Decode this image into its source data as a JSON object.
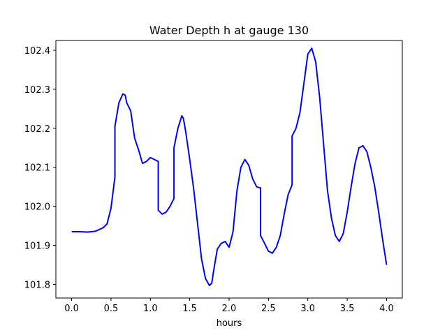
{
  "chart_data": {
    "type": "line",
    "title": "Water Depth h at gauge 130",
    "xlabel": "hours",
    "ylabel": "",
    "xlim": [
      -0.2,
      4.2
    ],
    "ylim": [
      101.765,
      102.425
    ],
    "xticks": [
      0.0,
      0.5,
      1.0,
      1.5,
      2.0,
      2.5,
      3.0,
      3.5,
      4.0
    ],
    "xtick_labels": [
      "0.0",
      "0.5",
      "1.0",
      "1.5",
      "2.0",
      "2.5",
      "3.0",
      "3.5",
      "4.0"
    ],
    "yticks": [
      101.8,
      101.9,
      102.0,
      102.1,
      102.2,
      102.3,
      102.4
    ],
    "ytick_labels": [
      "101.8",
      "101.9",
      "102.0",
      "102.1",
      "102.2",
      "102.3",
      "102.4"
    ],
    "grid": false,
    "series": [
      {
        "color": "#0000ff",
        "x": [
          0.0,
          0.1,
          0.2,
          0.3,
          0.4,
          0.45,
          0.5,
          0.55,
          0.55,
          0.6,
          0.65,
          0.68,
          0.7,
          0.75,
          0.8,
          0.85,
          0.9,
          0.95,
          1.0,
          1.05,
          1.1,
          1.1,
          1.15,
          1.2,
          1.25,
          1.3,
          1.3,
          1.35,
          1.4,
          1.42,
          1.45,
          1.5,
          1.55,
          1.6,
          1.65,
          1.7,
          1.75,
          1.78,
          1.8,
          1.85,
          1.9,
          1.95,
          2.0,
          2.05,
          2.1,
          2.15,
          2.2,
          2.25,
          2.3,
          2.35,
          2.4,
          2.4,
          2.45,
          2.5,
          2.55,
          2.6,
          2.65,
          2.7,
          2.75,
          2.8,
          2.8,
          2.85,
          2.9,
          2.95,
          3.0,
          3.05,
          3.1,
          3.15,
          3.2,
          3.25,
          3.3,
          3.35,
          3.4,
          3.45,
          3.5,
          3.55,
          3.6,
          3.65,
          3.7,
          3.75,
          3.8,
          3.85,
          3.9,
          3.95,
          4.0
        ],
        "y": [
          101.935,
          101.935,
          101.934,
          101.936,
          101.945,
          101.955,
          101.995,
          102.075,
          102.205,
          102.265,
          102.288,
          102.285,
          102.265,
          102.245,
          102.175,
          102.145,
          102.11,
          102.115,
          102.125,
          102.12,
          102.115,
          101.99,
          101.98,
          101.985,
          102.0,
          102.02,
          102.15,
          102.2,
          102.232,
          102.225,
          102.19,
          102.12,
          102.045,
          101.955,
          101.865,
          101.815,
          101.797,
          101.803,
          101.83,
          101.89,
          101.905,
          101.91,
          101.895,
          101.935,
          102.04,
          102.1,
          102.12,
          102.105,
          102.07,
          102.05,
          102.047,
          101.925,
          101.905,
          101.885,
          101.88,
          101.895,
          101.925,
          101.98,
          102.03,
          102.055,
          102.18,
          102.2,
          102.24,
          102.315,
          102.39,
          102.405,
          102.37,
          102.28,
          102.16,
          102.04,
          101.97,
          101.925,
          101.91,
          101.93,
          101.985,
          102.05,
          102.11,
          102.15,
          102.155,
          102.14,
          102.1,
          102.05,
          101.985,
          101.915,
          101.85
        ]
      }
    ]
  }
}
